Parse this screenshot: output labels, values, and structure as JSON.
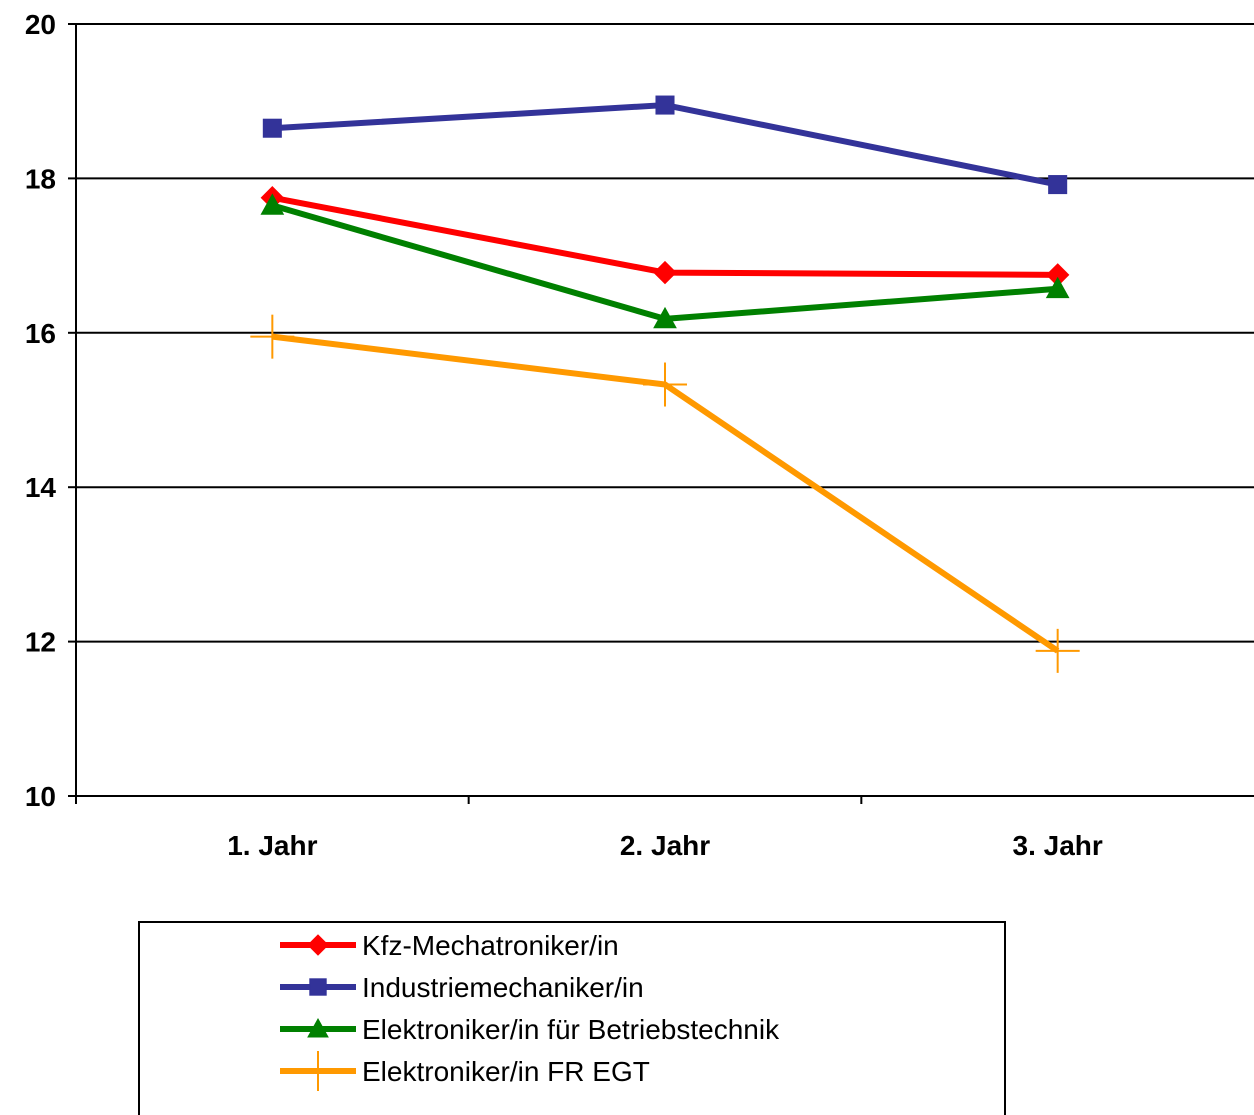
{
  "chart_data": {
    "type": "line",
    "title": "",
    "xlabel": "",
    "ylabel": "",
    "categories": [
      "1. Jahr",
      "2. Jahr",
      "3. Jahr"
    ],
    "ylim": [
      10,
      20
    ],
    "yticks": [
      10,
      12,
      14,
      16,
      18,
      20
    ],
    "grid": true,
    "legend_position": "bottom",
    "series": [
      {
        "name": "Kfz-Mechatroniker/in",
        "values": [
          17.75,
          16.78,
          16.75
        ],
        "color": "#ff0000",
        "marker": "diamond"
      },
      {
        "name": "Industriemechaniker/in",
        "values": [
          18.65,
          18.95,
          17.92
        ],
        "color": "#333399",
        "marker": "square"
      },
      {
        "name": "Elektroniker/in für Betriebstechnik",
        "values": [
          17.65,
          16.18,
          16.57
        ],
        "color": "#008000",
        "marker": "triangle"
      },
      {
        "name": "Elektroniker/in FR EGT",
        "values": [
          15.95,
          15.33,
          11.88
        ],
        "color": "#ff9900",
        "marker": "plus"
      }
    ]
  }
}
